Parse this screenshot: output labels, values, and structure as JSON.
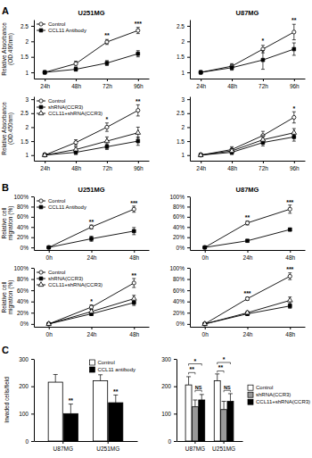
{
  "chart_data": [
    {
      "type": "line",
      "panel_label": "A",
      "title": "U251MG",
      "y_label": [
        "Relative Absorbance",
        "(OD.490nm)"
      ],
      "categories": [
        "24h",
        "48h",
        "72h",
        "96h"
      ],
      "ylim": [
        0.8,
        2.7
      ],
      "yticks": [
        1,
        1.5,
        2,
        2.5
      ],
      "legend": "top-left",
      "series": [
        {
          "name": "Control",
          "color": "#000000",
          "marker": "circle",
          "values": [
            1.0,
            1.28,
            1.98,
            2.35
          ],
          "errors": [
            0.05,
            0.08,
            0.08,
            0.1
          ]
        },
        {
          "name": "CCL11 Antibody",
          "color": "#000000",
          "marker": "square",
          "values": [
            1.0,
            1.1,
            1.3,
            1.6
          ],
          "errors": [
            0.05,
            0.06,
            0.08,
            0.1
          ]
        }
      ],
      "annotations": [
        {
          "text": "**",
          "x": 2,
          "y": 2.12
        },
        {
          "text": "***",
          "x": 3,
          "y": 2.5
        }
      ]
    },
    {
      "type": "line",
      "title": "U87MG",
      "categories": [
        "24h",
        "48h",
        "72h",
        "96h"
      ],
      "ylim": [
        0.8,
        2.7
      ],
      "yticks": [
        1,
        1.5,
        2,
        2.5
      ],
      "series": [
        {
          "color": "#000000",
          "marker": "circle",
          "values": [
            1.0,
            1.2,
            1.75,
            2.3
          ],
          "errors": [
            0.05,
            0.08,
            0.12,
            0.25
          ]
        },
        {
          "color": "#000000",
          "marker": "square",
          "values": [
            1.0,
            1.15,
            1.4,
            1.75
          ],
          "errors": [
            0.05,
            0.08,
            0.3,
            0.2
          ]
        }
      ],
      "annotations": [
        {
          "text": "*",
          "x": 2,
          "y": 1.95
        },
        {
          "text": "**",
          "x": 3,
          "y": 2.6
        }
      ]
    },
    {
      "type": "line",
      "y_label": [
        "Relative Absorbance",
        "(OD.450nm)"
      ],
      "categories": [
        "24h",
        "48h",
        "72h",
        "96h"
      ],
      "ylim": [
        0.8,
        3.1
      ],
      "yticks": [
        1,
        1.5,
        2,
        2.5,
        3
      ],
      "legend": "top-left",
      "series": [
        {
          "name": "Control",
          "color": "#000000",
          "marker": "circle",
          "values": [
            1.0,
            1.45,
            2.0,
            2.6
          ],
          "errors": [
            0.05,
            0.1,
            0.15,
            0.2
          ]
        },
        {
          "name": "shRNA(CCR3)",
          "color": "#000000",
          "marker": "square",
          "values": [
            1.0,
            1.1,
            1.3,
            1.5
          ],
          "errors": [
            0.05,
            0.08,
            0.1,
            0.15
          ]
        },
        {
          "name": "CCL11+shRNA(CCR3)",
          "color": "#000000",
          "marker": "triangle",
          "values": [
            1.0,
            1.2,
            1.5,
            1.8
          ],
          "errors": [
            0.05,
            0.1,
            0.15,
            0.2
          ]
        }
      ],
      "annotations": [
        {
          "text": "*",
          "x": 2,
          "y": 2.2
        },
        {
          "text": "**",
          "x": 3,
          "y": 2.85
        }
      ]
    },
    {
      "type": "line",
      "categories": [
        "24h",
        "48h",
        "72h",
        "96h"
      ],
      "ylim": [
        0.8,
        3.1
      ],
      "yticks": [
        1,
        1.5,
        2,
        2.5,
        3
      ],
      "series": [
        {
          "color": "#000000",
          "marker": "circle",
          "values": [
            1.0,
            1.2,
            1.7,
            2.35
          ],
          "errors": [
            0.05,
            0.1,
            0.15,
            0.2
          ]
        },
        {
          "color": "#000000",
          "marker": "square",
          "values": [
            1.0,
            1.1,
            1.45,
            1.65
          ],
          "errors": [
            0.05,
            0.08,
            0.12,
            0.15
          ]
        },
        {
          "color": "#000000",
          "marker": "triangle",
          "values": [
            1.0,
            1.15,
            1.55,
            1.8
          ],
          "errors": [
            0.05,
            0.08,
            0.15,
            0.15
          ]
        }
      ],
      "annotations": [
        {
          "text": "*",
          "x": 3,
          "y": 2.6
        }
      ]
    },
    {
      "type": "line",
      "panel_label": "B",
      "title": "U251MG",
      "y_label": [
        "Relative cell",
        "migration (%)"
      ],
      "categories": [
        "0h",
        "24h",
        "48h"
      ],
      "ylim": [
        -5,
        100
      ],
      "yticks": [
        {
          "value": 0,
          "label": "0%"
        },
        {
          "value": 20,
          "label": "20%"
        },
        {
          "value": 40,
          "label": "40%"
        },
        {
          "value": 60,
          "label": "60%"
        },
        {
          "value": 80,
          "label": "80%"
        },
        {
          "value": 100,
          "label": "100%"
        }
      ],
      "legend": "top-left",
      "series": [
        {
          "name": "Control",
          "color": "#000000",
          "marker": "circle",
          "values": [
            0,
            40,
            75
          ],
          "errors": [
            0,
            4,
            6
          ]
        },
        {
          "name": "CCL11 Antibody",
          "color": "#000000",
          "marker": "square",
          "values": [
            0,
            17,
            32
          ],
          "errors": [
            0,
            5,
            7
          ]
        }
      ],
      "annotations": [
        {
          "text": "**",
          "x": 1,
          "y": 46
        },
        {
          "text": "***",
          "x": 2,
          "y": 83
        }
      ]
    },
    {
      "type": "line",
      "title": "U87MG",
      "categories": [
        "0h",
        "24h",
        "48h"
      ],
      "ylim": [
        -5,
        100
      ],
      "yticks": [
        {
          "value": 0,
          "label": "0%"
        },
        {
          "value": 20,
          "label": "20%"
        },
        {
          "value": 40,
          "label": "40%"
        },
        {
          "value": 60,
          "label": "60%"
        },
        {
          "value": 80,
          "label": "80%"
        },
        {
          "value": 100,
          "label": "100%"
        }
      ],
      "series": [
        {
          "color": "#000000",
          "marker": "circle",
          "values": [
            0,
            48,
            75
          ],
          "errors": [
            0,
            4,
            8
          ]
        },
        {
          "color": "#000000",
          "marker": "square",
          "values": [
            0,
            13,
            35
          ],
          "errors": [
            0,
            2,
            3
          ]
        }
      ],
      "annotations": [
        {
          "text": "**",
          "x": 1,
          "y": 54
        },
        {
          "text": "***",
          "x": 2,
          "y": 85
        }
      ]
    },
    {
      "type": "line",
      "y_label": [
        "Relative cell",
        "migration (%)"
      ],
      "categories": [
        "0h",
        "24h",
        "48h"
      ],
      "ylim": [
        -5,
        100
      ],
      "yticks": [
        {
          "value": 0,
          "label": "0%"
        },
        {
          "value": 20,
          "label": "20%"
        },
        {
          "value": 40,
          "label": "40%"
        },
        {
          "value": 60,
          "label": "60%"
        },
        {
          "value": 80,
          "label": "80%"
        },
        {
          "value": 100,
          "label": "100%"
        }
      ],
      "legend": "top-left",
      "series": [
        {
          "name": "Control",
          "color": "#000000",
          "marker": "circle",
          "values": [
            0,
            30,
            73
          ],
          "errors": [
            0,
            4,
            8
          ]
        },
        {
          "name": "shRNA(CCR3)",
          "color": "#000000",
          "marker": "square",
          "values": [
            0,
            18,
            38
          ],
          "errors": [
            0,
            3,
            5
          ]
        },
        {
          "name": "CCL11+shRNA(CCR3)",
          "color": "#000000",
          "marker": "triangle",
          "values": [
            0,
            22,
            45
          ],
          "errors": [
            0,
            4,
            6
          ]
        }
      ],
      "annotations": [
        {
          "text": "*",
          "x": 1,
          "y": 36
        },
        {
          "text": "**",
          "x": 2,
          "y": 83
        }
      ]
    },
    {
      "type": "line",
      "categories": [
        "0h",
        "24h",
        "48h"
      ],
      "ylim": [
        -5,
        100
      ],
      "yticks": [
        {
          "value": 0,
          "label": "0%"
        },
        {
          "value": 20,
          "label": "20%"
        },
        {
          "value": 40,
          "label": "40%"
        },
        {
          "value": 60,
          "label": "60%"
        },
        {
          "value": 80,
          "label": "80%"
        },
        {
          "value": 100,
          "label": "100%"
        }
      ],
      "series": [
        {
          "color": "#000000",
          "marker": "circle",
          "values": [
            0,
            45,
            85
          ],
          "errors": [
            0,
            3,
            6
          ]
        },
        {
          "color": "#000000",
          "marker": "square",
          "values": [
            0,
            18,
            32
          ],
          "errors": [
            0,
            3,
            4
          ]
        },
        {
          "color": "#000000",
          "marker": "triangle",
          "values": [
            0,
            20,
            42
          ],
          "errors": [
            0,
            3,
            6
          ]
        }
      ],
      "annotations": [
        {
          "text": "***",
          "x": 1,
          "y": 50
        },
        {
          "text": "***",
          "x": 2,
          "y": 93
        }
      ]
    },
    {
      "type": "bar",
      "panel_label": "C",
      "y_label": [
        "Invaded cells/field"
      ],
      "categories": [
        "U87MG",
        "U251MG"
      ],
      "ylim": [
        0,
        300
      ],
      "yticks": [
        0,
        100,
        200,
        300
      ],
      "legend": "top-right",
      "series": [
        {
          "name": "Control",
          "color": "#ffffff",
          "values": [
            215,
            220
          ],
          "errors": [
            28,
            22
          ]
        },
        {
          "name": "CCL11 antibody",
          "color": "#000000",
          "values": [
            100,
            140
          ],
          "errors": [
            35,
            28
          ]
        }
      ],
      "annotations": [
        {
          "text": "**",
          "category": 0,
          "series": 1,
          "y": 140
        },
        {
          "text": "**",
          "category": 1,
          "series": 1,
          "y": 172
        }
      ]
    },
    {
      "type": "bar",
      "categories": [
        "U87MG",
        "U251MG"
      ],
      "ylim": [
        0,
        300
      ],
      "yticks": [
        0,
        100,
        200,
        300
      ],
      "legend": "right",
      "series": [
        {
          "name": "Control",
          "color": "#ffffff",
          "values": [
            205,
            220
          ],
          "errors": [
            30,
            25
          ]
        },
        {
          "name": "shRNA(CCR3)",
          "color": "#999999",
          "values": [
            125,
            115
          ],
          "errors": [
            25,
            30
          ]
        },
        {
          "name": "CCL11+shRNA(CCR3)",
          "color": "#000000",
          "values": [
            150,
            145
          ],
          "errors": [
            20,
            28
          ]
        }
      ],
      "comparisons": [
        {
          "text": "*",
          "category": 0,
          "series": [
            0,
            2
          ],
          "y": 282
        },
        {
          "text": "**",
          "category": 0,
          "series": [
            0,
            1
          ],
          "y": 250
        },
        {
          "text": "NS",
          "category": 0,
          "series": [
            1,
            2
          ],
          "y": 185
        },
        {
          "text": "*",
          "category": 1,
          "series": [
            0,
            2
          ],
          "y": 287
        },
        {
          "text": "**",
          "category": 1,
          "series": [
            0,
            1
          ],
          "y": 256
        },
        {
          "text": "NS",
          "category": 1,
          "series": [
            1,
            2
          ],
          "y": 185
        }
      ]
    }
  ]
}
